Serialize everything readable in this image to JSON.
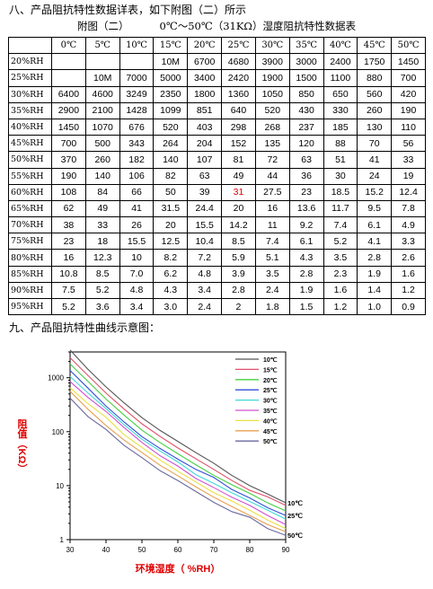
{
  "section8_title": "八、产品阻抗特性数据详表，如下附图（二）所示",
  "table_caption_parts": [
    "附图（二）",
    "0℃～50℃（31KΩ）湿度阻抗特性数据表"
  ],
  "table": {
    "corner": "",
    "columns": [
      "0℃",
      "5℃",
      "10℃",
      "15℃",
      "20℃",
      "25℃",
      "30℃",
      "35℃",
      "40℃",
      "45℃",
      "50℃"
    ],
    "rows": [
      {
        "label": "20%RH",
        "cells": [
          "",
          "",
          "",
          "10M",
          "6700",
          "4680",
          "3900",
          "3000",
          "2400",
          "1750",
          "1450"
        ]
      },
      {
        "label": "25%RH",
        "cells": [
          "",
          "10M",
          "7000",
          "5000",
          "3400",
          "2420",
          "1900",
          "1500",
          "1100",
          "880",
          "700"
        ]
      },
      {
        "label": "30%RH",
        "cells": [
          "6400",
          "4600",
          "3249",
          "2350",
          "1800",
          "1360",
          "1050",
          "850",
          "650",
          "560",
          "420"
        ]
      },
      {
        "label": "35%RH",
        "cells": [
          "2900",
          "2100",
          "1428",
          "1099",
          "851",
          "640",
          "520",
          "430",
          "330",
          "260",
          "190"
        ]
      },
      {
        "label": "40%RH",
        "cells": [
          "1450",
          "1070",
          "676",
          "520",
          "403",
          "298",
          "268",
          "237",
          "185",
          "130",
          "110"
        ]
      },
      {
        "label": "45%RH",
        "cells": [
          "700",
          "500",
          "343",
          "264",
          "204",
          "152",
          "135",
          "120",
          "88",
          "70",
          "56"
        ]
      },
      {
        "label": "50%RH",
        "cells": [
          "370",
          "260",
          "182",
          "140",
          "107",
          "81",
          "72",
          "63",
          "51",
          "41",
          "33"
        ]
      },
      {
        "label": "55%RH",
        "cells": [
          "190",
          "140",
          "106",
          "82",
          "63",
          "49",
          "44",
          "36",
          "30",
          "24",
          "19"
        ]
      },
      {
        "label": "60%RH",
        "cells": [
          "108",
          "84",
          "66",
          "50",
          "39",
          "31",
          "27.5",
          "23",
          "18.5",
          "15.2",
          "12.4"
        ]
      },
      {
        "label": "65%RH",
        "cells": [
          "62",
          "49",
          "41",
          "31.5",
          "24.4",
          "20",
          "16",
          "13.6",
          "11.7",
          "9.5",
          "7.8"
        ]
      },
      {
        "label": "70%RH",
        "cells": [
          "38",
          "33",
          "26",
          "20",
          "15.5",
          "14.2",
          "11",
          "9.2",
          "7.4",
          "6.1",
          "4.9"
        ]
      },
      {
        "label": "75%RH",
        "cells": [
          "23",
          "18",
          "15.5",
          "12.5",
          "10.4",
          "8.5",
          "7.4",
          "6.1",
          "5.2",
          "4.1",
          "3.3"
        ]
      },
      {
        "label": "80%RH",
        "cells": [
          "16",
          "12.3",
          "10",
          "8.2",
          "7.2",
          "5.9",
          "5.1",
          "4.3",
          "3.5",
          "2.8",
          "2.6"
        ]
      },
      {
        "label": "85%RH",
        "cells": [
          "10.8",
          "8.5",
          "7.0",
          "6.2",
          "4.8",
          "3.9",
          "3.5",
          "2.8",
          "2.3",
          "1.9",
          "1.6"
        ]
      },
      {
        "label": "90%RH",
        "cells": [
          "7.5",
          "5.2",
          "4.8",
          "4.3",
          "3.4",
          "2.8",
          "2.4",
          "1.9",
          "1.6",
          "1.4",
          "1.2"
        ]
      },
      {
        "label": "95%RH",
        "cells": [
          "5.2",
          "3.6",
          "3.4",
          "3.0",
          "2.4",
          "2",
          "1.8",
          "1.5",
          "1.2",
          "1.0",
          "0.9"
        ]
      }
    ],
    "highlight": {
      "row": 8,
      "col": 5,
      "color": "#e00000"
    }
  },
  "section9_title": "九、产品阻抗特性曲线示意图：",
  "chart_data": {
    "type": "line",
    "xlabel": "环境湿度（ %RH）",
    "ylabel": "阻值（KΩ）",
    "x": [
      30,
      35,
      40,
      45,
      50,
      55,
      60,
      65,
      70,
      75,
      80,
      85,
      90
    ],
    "xticks": [
      "30",
      "40",
      "50",
      "60",
      "70",
      "80",
      "90"
    ],
    "yscale": "log",
    "ylim": [
      1,
      3000
    ],
    "yticks": [
      "1",
      "10",
      "100",
      "1000"
    ],
    "label_color": "#e00000",
    "legend_position": "top-right",
    "series": [
      {
        "name": "10℃",
        "color": "#555555",
        "values": [
          3249,
          1428,
          676,
          343,
          182,
          106,
          66,
          41,
          26,
          15.5,
          10,
          7.0,
          4.8
        ]
      },
      {
        "name": "15℃",
        "color": "#e0506a",
        "values": [
          2350,
          1099,
          520,
          264,
          140,
          82,
          50,
          31.5,
          20,
          12.5,
          8.2,
          6.2,
          4.3
        ]
      },
      {
        "name": "20℃",
        "color": "#44d040",
        "values": [
          1800,
          851,
          403,
          204,
          107,
          63,
          39,
          24.4,
          15.5,
          10.4,
          7.2,
          4.8,
          3.4
        ]
      },
      {
        "name": "25℃",
        "color": "#3050d8",
        "values": [
          1360,
          640,
          298,
          152,
          81,
          49,
          31,
          20,
          14.2,
          8.5,
          5.9,
          3.9,
          2.8
        ]
      },
      {
        "name": "30℃",
        "color": "#40d8d8",
        "values": [
          1050,
          520,
          268,
          135,
          72,
          44,
          27.5,
          16,
          11,
          7.4,
          5.1,
          3.5,
          2.4
        ]
      },
      {
        "name": "35℃",
        "color": "#d050d0",
        "values": [
          850,
          430,
          237,
          120,
          63,
          36,
          23,
          13.6,
          9.2,
          6.1,
          4.3,
          2.8,
          1.9
        ]
      },
      {
        "name": "40℃",
        "color": "#e8e040",
        "values": [
          650,
          330,
          185,
          88,
          51,
          30,
          18.5,
          11.7,
          7.4,
          5.2,
          3.5,
          2.3,
          1.6
        ]
      },
      {
        "name": "45℃",
        "color": "#e8a050",
        "values": [
          560,
          260,
          130,
          70,
          41,
          24,
          15.2,
          9.5,
          6.1,
          4.1,
          2.8,
          1.9,
          1.4
        ]
      },
      {
        "name": "50℃",
        "color": "#6a6aa0",
        "values": [
          420,
          190,
          110,
          56,
          33,
          19,
          12.4,
          7.8,
          4.9,
          3.3,
          2.6,
          1.6,
          1.2
        ]
      }
    ],
    "end_labels": [
      {
        "series": "10℃",
        "text": "10℃"
      },
      {
        "series": "25℃",
        "text": "25℃"
      },
      {
        "series": "50℃",
        "text": "50℃"
      }
    ]
  }
}
